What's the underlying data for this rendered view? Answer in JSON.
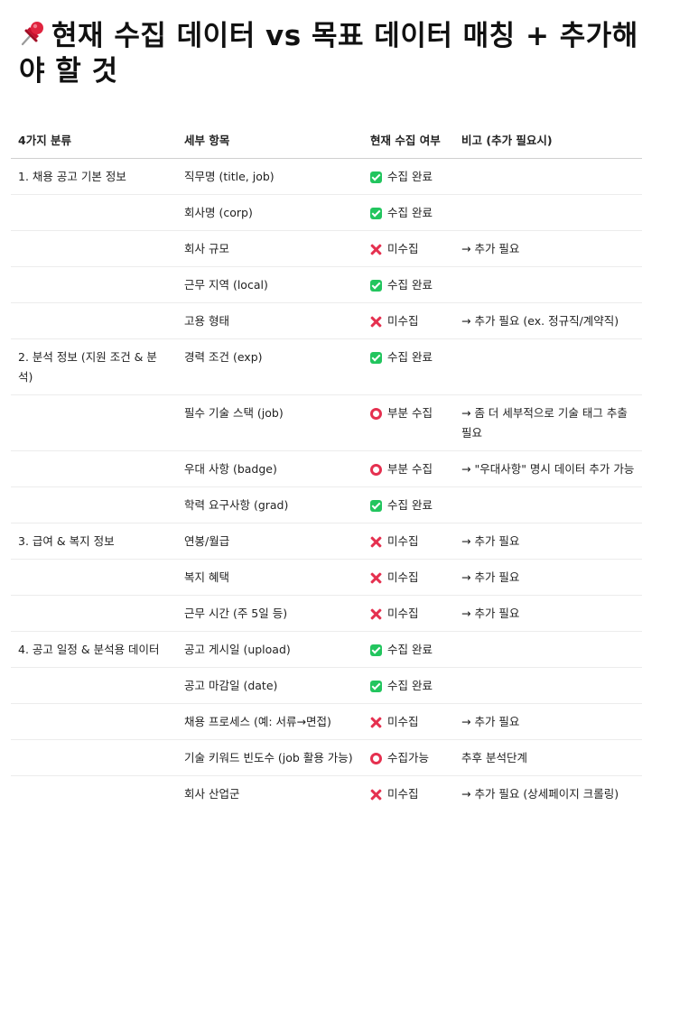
{
  "title": "현재 수집 데이터 vs 목표 데이터 매칭 + 추가해야 할 것",
  "title_icon": "pushpin-icon",
  "colors": {
    "check": "#22c55e",
    "cross": "#e5304f",
    "partial": "#e5304f"
  },
  "table": {
    "headers": [
      "4가지 분류",
      "세부 항목",
      "현재 수집 여부",
      "비고 (추가 필요시)"
    ],
    "rows": [
      {
        "category": "1. 채용 공고 기본 정보",
        "item": "직무명 (title, job)",
        "status_icon": "check",
        "status": "수집 완료",
        "note": ""
      },
      {
        "category": "",
        "item": "회사명 (corp)",
        "status_icon": "check",
        "status": "수집 완료",
        "note": ""
      },
      {
        "category": "",
        "item": "회사 규모",
        "status_icon": "cross",
        "status": "미수집",
        "note": "→ 추가 필요"
      },
      {
        "category": "",
        "item": "근무 지역 (local)",
        "status_icon": "check",
        "status": "수집 완료",
        "note": ""
      },
      {
        "category": "",
        "item": "고용 형태",
        "status_icon": "cross",
        "status": "미수집",
        "note": "→ 추가 필요 (ex. 정규직/계약직)"
      },
      {
        "category": "2. 분석 정보 (지원 조건 & 분석)",
        "item": "경력 조건 (exp)",
        "status_icon": "check",
        "status": "수집 완료",
        "note": ""
      },
      {
        "category": "",
        "item": "필수 기술 스택 (job)",
        "status_icon": "circle",
        "status": "부분 수집",
        "note": "→ 좀 더 세부적으로 기술 태그 추출 필요"
      },
      {
        "category": "",
        "item": "우대 사항 (badge)",
        "status_icon": "circle",
        "status": "부분 수집",
        "note": "→ \"우대사항\" 명시 데이터 추가 가능"
      },
      {
        "category": "",
        "item": "학력 요구사항 (grad)",
        "status_icon": "check",
        "status": "수집 완료",
        "note": ""
      },
      {
        "category": "3. 급여 & 복지 정보",
        "item": "연봉/월급",
        "status_icon": "cross",
        "status": "미수집",
        "note": "→ 추가 필요"
      },
      {
        "category": "",
        "item": "복지 혜택",
        "status_icon": "cross",
        "status": "미수집",
        "note": "→ 추가 필요"
      },
      {
        "category": "",
        "item": "근무 시간 (주 5일 등)",
        "status_icon": "cross",
        "status": "미수집",
        "note": "→ 추가 필요"
      },
      {
        "category": "4. 공고 일정 & 분석용 데이터",
        "item": "공고 게시일 (upload)",
        "status_icon": "check",
        "status": "수집 완료",
        "note": ""
      },
      {
        "category": "",
        "item": "공고 마감일 (date)",
        "status_icon": "check",
        "status": "수집 완료",
        "note": ""
      },
      {
        "category": "",
        "item": "채용 프로세스 (예: 서류→면접)",
        "status_icon": "cross",
        "status": "미수집",
        "note": "→ 추가 필요"
      },
      {
        "category": "",
        "item": "기술 키워드 빈도수 (job 활용 가능)",
        "status_icon": "circle",
        "status": "수집가능",
        "note": "추후 분석단계"
      },
      {
        "category": "",
        "item": "회사 산업군",
        "status_icon": "cross",
        "status": "미수집",
        "note": "→ 추가 필요 (상세페이지 크롤링)"
      }
    ]
  }
}
